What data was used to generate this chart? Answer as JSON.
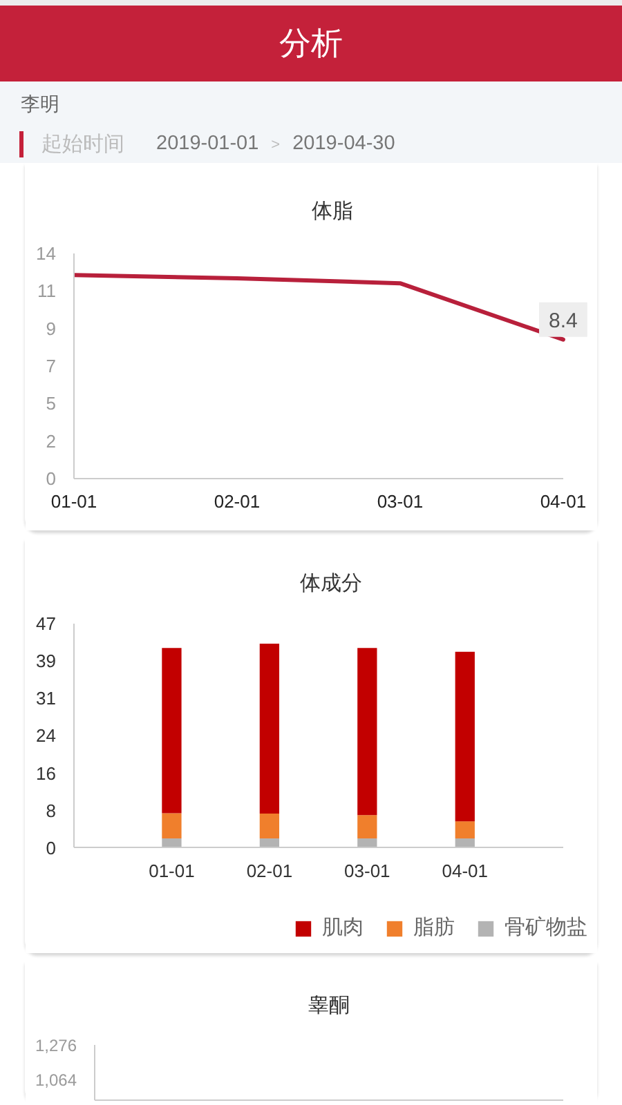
{
  "chart_data": [
    {
      "type": "other",
      "title": "分析",
      "annotations": [
        "李明",
        "起始时间",
        "2019-01-01",
        ">",
        "2019-04-30"
      ]
    },
    {
      "type": "line",
      "title": "体脂",
      "categories": [
        "01-01",
        "02-01",
        "03-01",
        "04-01"
      ],
      "values": [
        12.3,
        12.1,
        11.8,
        8.4
      ],
      "color": "#b8203b",
      "value_labels": [
        null,
        null,
        null,
        "8.4"
      ],
      "ylim": [
        0,
        13.6
      ],
      "yticks": [
        0,
        {
          "value": 2.27,
          "label": "2"
        },
        {
          "value": 4.53,
          "label": "5"
        },
        {
          "value": 6.8,
          "label": "7"
        },
        {
          "value": 9.07,
          "label": "9"
        },
        {
          "value": 11.33,
          "label": "11"
        },
        {
          "value": 13.6,
          "label": "14"
        }
      ]
    },
    {
      "type": "bar",
      "title": "体成分",
      "stacked": true,
      "categories": [
        "01-01",
        "02-01",
        "03-01",
        "04-01"
      ],
      "series": [
        {
          "name": "骨矿物盐",
          "color": "#b3b3b3",
          "values": [
            2.0,
            2.0,
            2.0,
            2.0
          ]
        },
        {
          "name": "脂肪",
          "color": "#f07f2c",
          "values": [
            5.3,
            5.2,
            4.9,
            3.6
          ]
        },
        {
          "name": "肌肉",
          "color": "#c20000",
          "values": [
            34.6,
            35.6,
            35.0,
            35.5
          ]
        }
      ],
      "ylim": [
        0,
        47
      ],
      "yticks": [
        0,
        {
          "value": 7.83,
          "label": "8"
        },
        {
          "value": 15.67,
          "label": "16"
        },
        {
          "value": 23.5,
          "label": "24"
        },
        {
          "value": 31.33,
          "label": "31"
        },
        {
          "value": 39.17,
          "label": "39"
        },
        47
      ],
      "legend": "bottom right"
    },
    {
      "type": "line",
      "title": "睾酮",
      "categories": [
        null,
        null,
        null,
        null
      ],
      "ylim": [
        940,
        1276
      ],
      "yticks": [
        {
          "value": 1064,
          "label": "1,064"
        },
        {
          "value": 1276,
          "label": "1,276"
        }
      ],
      "tick_labels": "y"
    }
  ]
}
